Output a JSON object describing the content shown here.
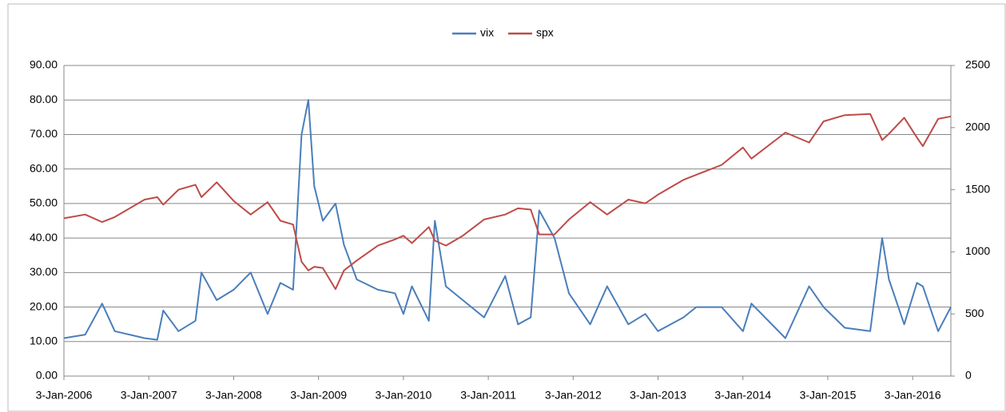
{
  "chart_data": {
    "type": "line",
    "x": [
      2006.0,
      2006.25,
      2006.45,
      2006.6,
      2006.95,
      2007.1,
      2007.17,
      2007.35,
      2007.55,
      2007.62,
      2007.8,
      2008.0,
      2008.2,
      2008.4,
      2008.55,
      2008.7,
      2008.8,
      2008.88,
      2008.95,
      2009.05,
      2009.2,
      2009.3,
      2009.45,
      2009.7,
      2009.9,
      2010.0,
      2010.1,
      2010.3,
      2010.37,
      2010.5,
      2010.7,
      2010.95,
      2011.2,
      2011.35,
      2011.5,
      2011.6,
      2011.78,
      2011.95,
      2012.2,
      2012.4,
      2012.65,
      2012.85,
      2013.0,
      2013.3,
      2013.45,
      2013.75,
      2014.0,
      2014.1,
      2014.5,
      2014.78,
      2014.95,
      2015.2,
      2015.5,
      2015.64,
      2015.72,
      2015.9,
      2016.05,
      2016.12,
      2016.3,
      2016.45
    ],
    "series": [
      {
        "name": "vix",
        "color": "#4a7ebb",
        "values": [
          11,
          12,
          21,
          13,
          11,
          10.5,
          19,
          13,
          16,
          30,
          22,
          25,
          30,
          18,
          27,
          25,
          70,
          80,
          55,
          45,
          50,
          38,
          28,
          25,
          24,
          18,
          26,
          16,
          45,
          26,
          22,
          17,
          29,
          15,
          17,
          48,
          40,
          24,
          15,
          26,
          15,
          18,
          13,
          17,
          20,
          20,
          13,
          21,
          11,
          26,
          20,
          14,
          13,
          40,
          28,
          15,
          27,
          26,
          13,
          20
        ]
      },
      {
        "name": "spx",
        "color": "#be4b48",
        "axis": "y2",
        "values": [
          1270,
          1300,
          1240,
          1280,
          1420,
          1440,
          1380,
          1500,
          1540,
          1440,
          1560,
          1410,
          1300,
          1400,
          1250,
          1220,
          920,
          850,
          880,
          870,
          700,
          850,
          930,
          1050,
          1100,
          1130,
          1070,
          1200,
          1090,
          1050,
          1130,
          1260,
          1300,
          1350,
          1340,
          1140,
          1140,
          1260,
          1400,
          1300,
          1420,
          1390,
          1460,
          1580,
          1620,
          1700,
          1840,
          1750,
          1960,
          1880,
          2050,
          2100,
          2110,
          1900,
          1950,
          2080,
          1920,
          1850,
          2070,
          2090
        ]
      }
    ],
    "xlim": [
      2006.0,
      2016.45
    ],
    "xticks": [
      {
        "value": 2006.0,
        "label": "3-Jan-2006"
      },
      {
        "value": 2007.0,
        "label": "3-Jan-2007"
      },
      {
        "value": 2008.0,
        "label": "3-Jan-2008"
      },
      {
        "value": 2009.0,
        "label": "3-Jan-2009"
      },
      {
        "value": 2010.0,
        "label": "3-Jan-2010"
      },
      {
        "value": 2011.0,
        "label": "3-Jan-2011"
      },
      {
        "value": 2012.0,
        "label": "3-Jan-2012"
      },
      {
        "value": 2013.0,
        "label": "3-Jan-2013"
      },
      {
        "value": 2014.0,
        "label": "3-Jan-2014"
      },
      {
        "value": 2015.0,
        "label": "3-Jan-2015"
      },
      {
        "value": 2016.0,
        "label": "3-Jan-2016"
      }
    ],
    "ylim": [
      0,
      90
    ],
    "yticks": [
      {
        "value": 0,
        "label": "0.00"
      },
      {
        "value": 10,
        "label": "10.00"
      },
      {
        "value": 20,
        "label": "20.00"
      },
      {
        "value": 30,
        "label": "30.00"
      },
      {
        "value": 40,
        "label": "40.00"
      },
      {
        "value": 50,
        "label": "50.00"
      },
      {
        "value": 60,
        "label": "60.00"
      },
      {
        "value": 70,
        "label": "70.00"
      },
      {
        "value": 80,
        "label": "80.00"
      },
      {
        "value": 90,
        "label": "90.00"
      }
    ],
    "y2lim": [
      0,
      2500
    ],
    "y2ticks": [
      0,
      500,
      1000,
      1500,
      2000,
      2500
    ],
    "grid": true,
    "legend": "top"
  }
}
